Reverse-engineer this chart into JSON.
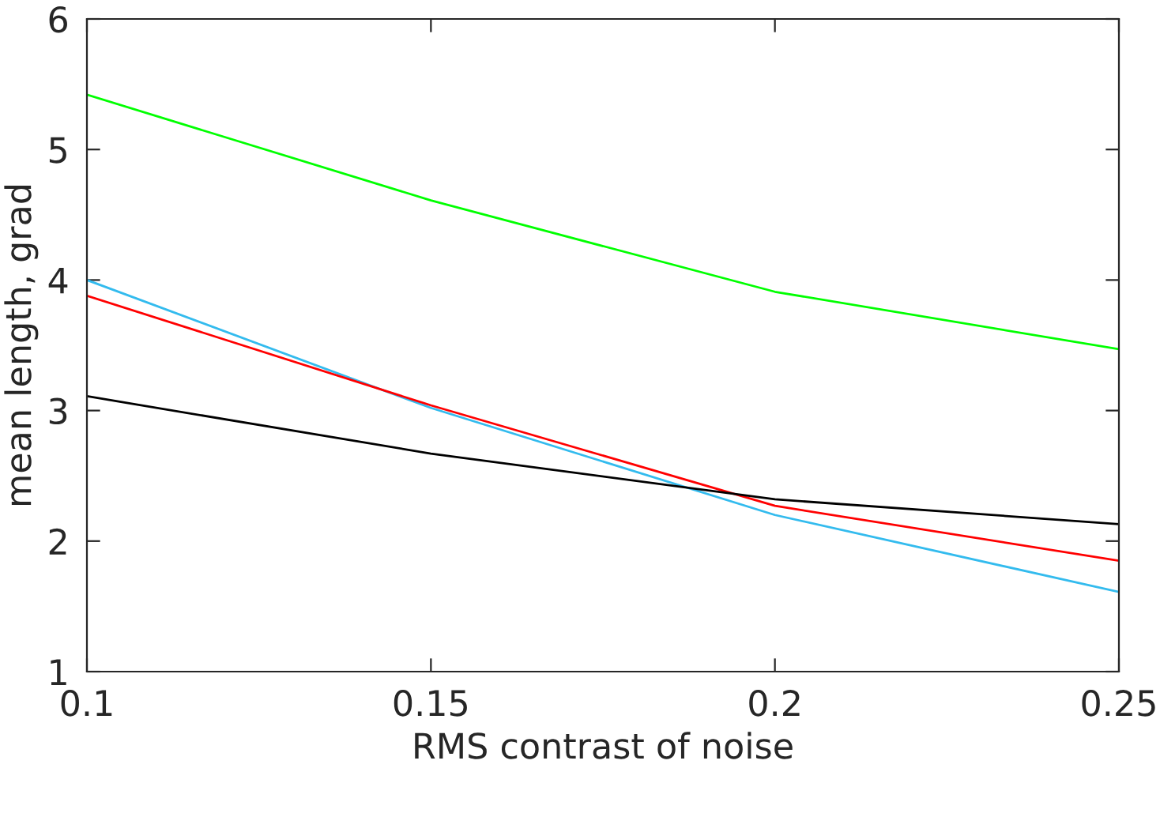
{
  "chart_data": {
    "type": "line",
    "xlabel": "RMS contrast of noise",
    "ylabel": "mean length, grad",
    "x": [
      0.1,
      0.15,
      0.2,
      0.25
    ],
    "series": [
      {
        "color": "#00ff00",
        "values": [
          5.42,
          4.61,
          3.91,
          3.47
        ]
      },
      {
        "color": "#33bbee",
        "values": [
          4.0,
          3.02,
          2.2,
          1.61
        ]
      },
      {
        "color": "#ff0000",
        "values": [
          3.88,
          3.04,
          2.27,
          1.85
        ]
      },
      {
        "color": "#000000",
        "values": [
          3.11,
          2.67,
          2.32,
          2.13
        ]
      }
    ],
    "xlim": [
      0.1,
      0.25
    ],
    "xticks": [
      0.1,
      0.15,
      0.2,
      0.25
    ],
    "ylim": [
      1,
      6
    ],
    "yticks": [
      1,
      2,
      3,
      4,
      5,
      6
    ],
    "marker": "none",
    "line_style": "solid"
  }
}
